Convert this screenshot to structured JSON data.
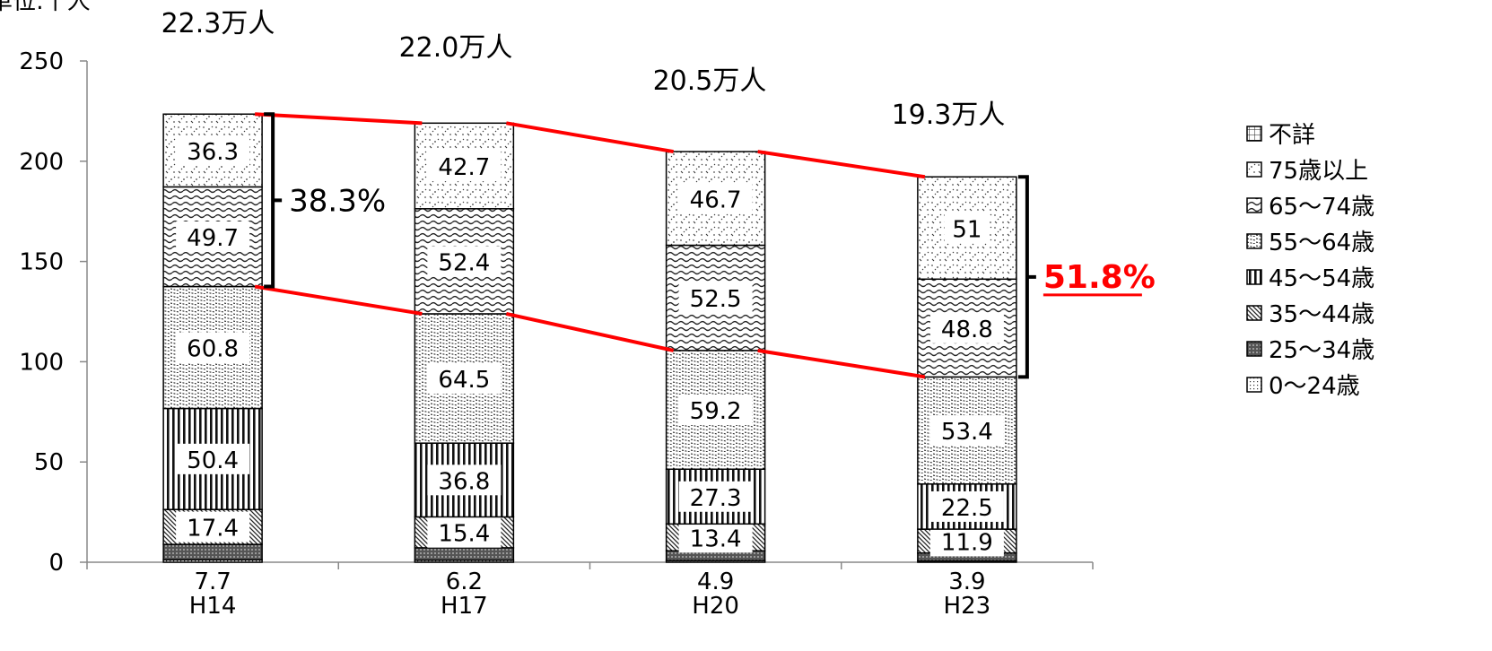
{
  "chart_data": {
    "type": "bar",
    "stacked": true,
    "unit_label": "単位:千人",
    "categories": [
      "H14",
      "H17",
      "H20",
      "H23"
    ],
    "totals_labels": [
      "22.3万人",
      "22.0万人",
      "20.5万人",
      "19.3万人"
    ],
    "ylim": [
      0,
      250
    ],
    "yticks": [
      0,
      50,
      100,
      150,
      200,
      250
    ],
    "grid": false,
    "legend_position": "right",
    "series": [
      {
        "name": "0〜24歳",
        "values": [
          1.2,
          1.0,
          0.8,
          0.7
        ],
        "pattern": "dots-fine",
        "labeled": false
      },
      {
        "name": "25〜34歳",
        "values": [
          7.7,
          6.2,
          4.9,
          3.9
        ],
        "pattern": "dark-grid",
        "labeled": true,
        "label_position": "below-axis"
      },
      {
        "name": "35〜44歳",
        "values": [
          17.4,
          15.4,
          13.4,
          11.9
        ],
        "pattern": "diag-back",
        "labeled": true
      },
      {
        "name": "45〜54歳",
        "values": [
          50.4,
          36.8,
          27.3,
          22.5
        ],
        "pattern": "vertical",
        "labeled": true
      },
      {
        "name": "55〜64歳",
        "values": [
          60.8,
          64.5,
          59.2,
          53.4
        ],
        "pattern": "diag-dashes",
        "labeled": true
      },
      {
        "name": "65〜74歳",
        "values": [
          49.7,
          52.4,
          52.5,
          48.8
        ],
        "pattern": "wave",
        "labeled": true
      },
      {
        "name": "75歳以上",
        "values": [
          36.3,
          42.7,
          46.7,
          51
        ],
        "pattern": "confetti",
        "labeled": true
      },
      {
        "name": "不詳",
        "values": [
          0,
          0,
          0,
          0
        ],
        "pattern": "grid",
        "labeled": false
      }
    ],
    "annotations": [
      {
        "text": "38.3%",
        "bracket_category": "H14",
        "color": "#000000",
        "bold": false,
        "underline": false
      },
      {
        "text": "51.8%",
        "bracket_category": "H23",
        "color": "#ff0000",
        "bold": true,
        "underline": true
      }
    ],
    "connector_color": "#ff0000"
  }
}
